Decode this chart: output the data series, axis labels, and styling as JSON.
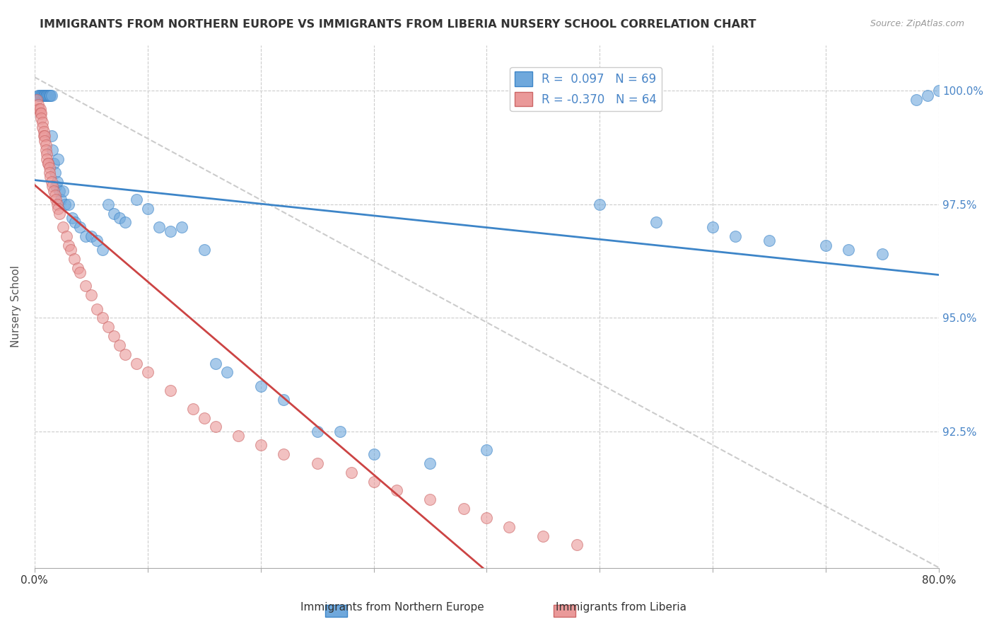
{
  "title": "IMMIGRANTS FROM NORTHERN EUROPE VS IMMIGRANTS FROM LIBERIA NURSERY SCHOOL CORRELATION CHART",
  "source": "Source: ZipAtlas.com",
  "ylabel": "Nursery School",
  "ytick_labels": [
    "100.0%",
    "97.5%",
    "95.0%",
    "92.5%"
  ],
  "ytick_values": [
    1.0,
    0.975,
    0.95,
    0.925
  ],
  "xlim": [
    0.0,
    0.8
  ],
  "ylim": [
    0.895,
    1.01
  ],
  "R_blue": 0.097,
  "N_blue": 69,
  "R_pink": -0.37,
  "N_pink": 64,
  "blue_color": "#6fa8dc",
  "pink_color": "#ea9999",
  "blue_line_color": "#3d85c8",
  "pink_line_color": "#cc4444",
  "legend_label_blue": "Immigrants from Northern Europe",
  "legend_label_pink": "Immigrants from Liberia",
  "blue_x": [
    0.003,
    0.004,
    0.005,
    0.006,
    0.007,
    0.007,
    0.008,
    0.008,
    0.009,
    0.009,
    0.01,
    0.01,
    0.011,
    0.011,
    0.012,
    0.012,
    0.013,
    0.013,
    0.014,
    0.015,
    0.015,
    0.016,
    0.017,
    0.018,
    0.019,
    0.02,
    0.021,
    0.022,
    0.023,
    0.025,
    0.027,
    0.03,
    0.033,
    0.036,
    0.04,
    0.045,
    0.05,
    0.055,
    0.06,
    0.065,
    0.07,
    0.075,
    0.08,
    0.09,
    0.1,
    0.11,
    0.12,
    0.13,
    0.15,
    0.16,
    0.17,
    0.2,
    0.22,
    0.25,
    0.27,
    0.3,
    0.35,
    0.4,
    0.5,
    0.55,
    0.6,
    0.62,
    0.65,
    0.7,
    0.72,
    0.75,
    0.78,
    0.79,
    0.8
  ],
  "blue_y": [
    0.999,
    0.999,
    0.999,
    0.999,
    0.999,
    0.999,
    0.999,
    0.999,
    0.999,
    0.999,
    0.999,
    0.999,
    0.999,
    0.999,
    0.999,
    0.999,
    0.999,
    0.999,
    0.999,
    0.999,
    0.99,
    0.987,
    0.984,
    0.982,
    0.979,
    0.98,
    0.985,
    0.978,
    0.976,
    0.978,
    0.975,
    0.975,
    0.972,
    0.971,
    0.97,
    0.968,
    0.968,
    0.967,
    0.965,
    0.975,
    0.973,
    0.972,
    0.971,
    0.976,
    0.974,
    0.97,
    0.969,
    0.97,
    0.965,
    0.94,
    0.938,
    0.935,
    0.932,
    0.925,
    0.925,
    0.92,
    0.918,
    0.921,
    0.975,
    0.971,
    0.97,
    0.968,
    0.967,
    0.966,
    0.965,
    0.964,
    0.998,
    0.999,
    1.0
  ],
  "pink_x": [
    0.002,
    0.003,
    0.004,
    0.005,
    0.005,
    0.006,
    0.006,
    0.007,
    0.007,
    0.008,
    0.008,
    0.009,
    0.009,
    0.01,
    0.01,
    0.011,
    0.011,
    0.012,
    0.012,
    0.013,
    0.013,
    0.014,
    0.015,
    0.016,
    0.017,
    0.018,
    0.019,
    0.02,
    0.021,
    0.022,
    0.025,
    0.028,
    0.03,
    0.032,
    0.035,
    0.038,
    0.04,
    0.045,
    0.05,
    0.055,
    0.06,
    0.065,
    0.07,
    0.075,
    0.08,
    0.09,
    0.1,
    0.12,
    0.14,
    0.15,
    0.16,
    0.18,
    0.2,
    0.22,
    0.25,
    0.28,
    0.3,
    0.32,
    0.35,
    0.38,
    0.4,
    0.42,
    0.45,
    0.48
  ],
  "pink_y": [
    0.998,
    0.997,
    0.996,
    0.996,
    0.995,
    0.995,
    0.994,
    0.993,
    0.992,
    0.991,
    0.99,
    0.99,
    0.989,
    0.988,
    0.987,
    0.986,
    0.985,
    0.984,
    0.984,
    0.983,
    0.982,
    0.981,
    0.98,
    0.979,
    0.978,
    0.977,
    0.976,
    0.975,
    0.974,
    0.973,
    0.97,
    0.968,
    0.966,
    0.965,
    0.963,
    0.961,
    0.96,
    0.957,
    0.955,
    0.952,
    0.95,
    0.948,
    0.946,
    0.944,
    0.942,
    0.94,
    0.938,
    0.934,
    0.93,
    0.928,
    0.926,
    0.924,
    0.922,
    0.92,
    0.918,
    0.916,
    0.914,
    0.912,
    0.91,
    0.908,
    0.906,
    0.904,
    0.902,
    0.9
  ]
}
